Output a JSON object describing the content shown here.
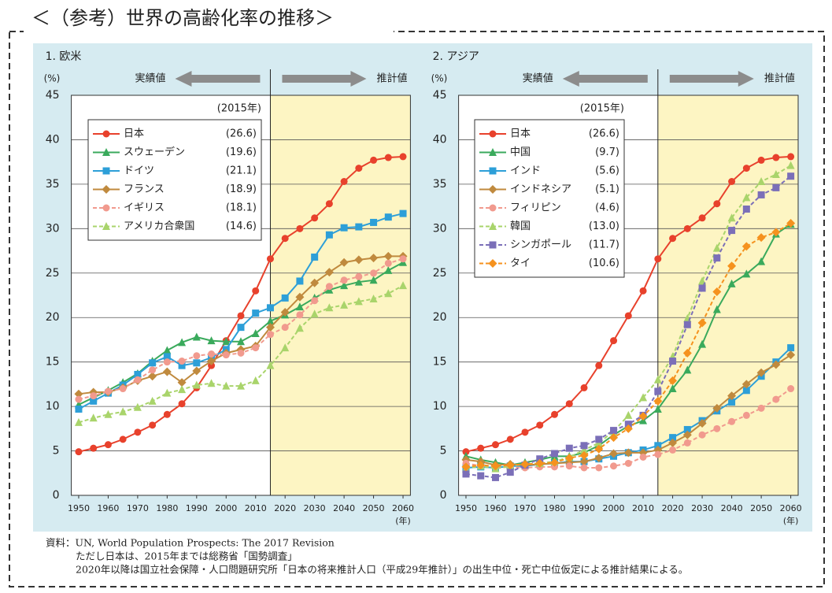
{
  "header": {
    "title": "＜（参考）世界の高齢化率の推移＞"
  },
  "source": [
    "資料：UN, World Population Prospects: The 2017 Revision",
    "ただし日本は、2015年までは総務省「国勢調査」",
    "2020年以降は国立社会保障・人口問題研究所「日本の将来推計人口（平成29年推計）」の出生中位・死亡中位仮定による推計結果による。"
  ],
  "chart_data": [
    {
      "type": "line",
      "title": "1. 欧米",
      "ylabel": "(%)",
      "xlabel": "(年)",
      "actual_label": "実績値",
      "forecast_label": "推計値",
      "forecast_start": 2015,
      "legend_title": "(2015年)",
      "x": [
        1950,
        1955,
        1960,
        1965,
        1970,
        1975,
        1980,
        1985,
        1990,
        1995,
        2000,
        2005,
        2010,
        2015,
        2020,
        2025,
        2030,
        2035,
        2040,
        2045,
        2050,
        2055,
        2060
      ],
      "xlim": [
        1947.5,
        2062.5
      ],
      "xticks": [
        1950,
        1960,
        1970,
        1980,
        1990,
        2000,
        2010,
        2020,
        2030,
        2040,
        2050,
        2060
      ],
      "ylim": [
        0,
        45
      ],
      "yticks": [
        0,
        5,
        10,
        15,
        20,
        25,
        30,
        35,
        40,
        45
      ],
      "grid": true,
      "series": [
        {
          "name": "日本",
          "legend_value": "(26.6)",
          "color": "#e8412c",
          "marker": "circle",
          "dashed": false,
          "values": [
            4.9,
            5.3,
            5.7,
            6.3,
            7.1,
            7.9,
            9.1,
            10.3,
            12.1,
            14.6,
            17.4,
            20.2,
            23.0,
            26.6,
            28.9,
            30.0,
            31.2,
            32.8,
            35.3,
            36.8,
            37.7,
            38.0,
            38.1
          ]
        },
        {
          "name": "スウェーデン",
          "legend_value": "(19.6)",
          "color": "#3aaa5c",
          "marker": "triangle",
          "dashed": false,
          "values": [
            10.2,
            11.0,
            11.8,
            12.7,
            13.7,
            15.1,
            16.3,
            17.2,
            17.8,
            17.4,
            17.3,
            17.3,
            18.2,
            19.6,
            20.3,
            21.2,
            22.2,
            23.1,
            23.6,
            24.0,
            24.2,
            25.3,
            26.2
          ]
        },
        {
          "name": "ドイツ",
          "legend_value": "(21.1)",
          "color": "#2d9fd8",
          "marker": "square",
          "dashed": false,
          "values": [
            9.7,
            10.6,
            11.5,
            12.4,
            13.6,
            14.9,
            15.6,
            14.6,
            14.9,
            15.5,
            16.4,
            18.9,
            20.5,
            21.1,
            22.2,
            24.1,
            26.8,
            29.3,
            30.1,
            30.2,
            30.7,
            31.3,
            31.7
          ]
        },
        {
          "name": "フランス",
          "legend_value": "(18.9)",
          "color": "#c08a3e",
          "marker": "diamond",
          "dashed": false,
          "values": [
            11.4,
            11.6,
            11.6,
            12.1,
            12.9,
            13.4,
            13.9,
            12.7,
            14.0,
            15.1,
            16.0,
            16.4,
            16.8,
            18.9,
            20.6,
            22.3,
            23.9,
            25.1,
            26.2,
            26.5,
            26.7,
            26.9,
            26.9
          ]
        },
        {
          "name": "イギリス",
          "legend_value": "(18.1)",
          "color": "#f19a8e",
          "marker": "circle",
          "dashed": true,
          "values": [
            10.8,
            11.2,
            11.7,
            12.0,
            13.0,
            14.1,
            15.0,
            15.1,
            15.7,
            15.9,
            15.8,
            16.0,
            16.6,
            18.1,
            18.9,
            20.3,
            21.9,
            23.5,
            24.2,
            24.6,
            25.0,
            26.1,
            26.6
          ]
        },
        {
          "name": "アメリカ合衆国",
          "legend_value": "(14.6)",
          "color": "#a9d46b",
          "marker": "triangle",
          "dashed": true,
          "values": [
            8.2,
            8.7,
            9.1,
            9.4,
            9.9,
            10.6,
            11.5,
            11.9,
            12.4,
            12.6,
            12.3,
            12.3,
            12.9,
            14.6,
            16.6,
            18.8,
            20.4,
            21.1,
            21.4,
            21.8,
            22.1,
            22.7,
            23.6
          ]
        }
      ]
    },
    {
      "type": "line",
      "title": "2. アジア",
      "ylabel": "(%)",
      "xlabel": "(年)",
      "actual_label": "実績値",
      "forecast_label": "推計値",
      "forecast_start": 2015,
      "legend_title": "(2015年)",
      "x": [
        1950,
        1955,
        1960,
        1965,
        1970,
        1975,
        1980,
        1985,
        1990,
        1995,
        2000,
        2005,
        2010,
        2015,
        2020,
        2025,
        2030,
        2035,
        2040,
        2045,
        2050,
        2055,
        2060
      ],
      "xlim": [
        1947.5,
        2062.5
      ],
      "xticks": [
        1950,
        1960,
        1970,
        1980,
        1990,
        2000,
        2010,
        2020,
        2030,
        2040,
        2050,
        2060
      ],
      "ylim": [
        0,
        45
      ],
      "yticks": [
        0,
        5,
        10,
        15,
        20,
        25,
        30,
        35,
        40,
        45
      ],
      "grid": true,
      "series": [
        {
          "name": "日本",
          "legend_value": "(26.6)",
          "color": "#e8412c",
          "marker": "circle",
          "dashed": false,
          "values": [
            4.9,
            5.3,
            5.7,
            6.3,
            7.1,
            7.9,
            9.1,
            10.3,
            12.1,
            14.6,
            17.4,
            20.2,
            23.0,
            26.6,
            28.9,
            30.0,
            31.2,
            32.8,
            35.3,
            36.8,
            37.7,
            38.0,
            38.1
          ]
        },
        {
          "name": "中国",
          "legend_value": "(9.7)",
          "color": "#3aaa5c",
          "marker": "triangle",
          "dashed": false,
          "values": [
            4.4,
            4.0,
            3.7,
            3.4,
            3.7,
            4.0,
            4.4,
            4.4,
            4.8,
            5.6,
            6.8,
            7.8,
            8.4,
            9.7,
            12.0,
            14.1,
            17.0,
            20.9,
            23.8,
            24.9,
            26.3,
            29.4,
            30.5
          ]
        },
        {
          "name": "インド",
          "legend_value": "(5.6)",
          "color": "#2d9fd8",
          "marker": "square",
          "dashed": false,
          "values": [
            3.1,
            3.2,
            3.1,
            3.3,
            3.3,
            3.5,
            3.6,
            3.8,
            3.8,
            4.1,
            4.4,
            4.8,
            5.1,
            5.6,
            6.5,
            7.4,
            8.4,
            9.5,
            10.5,
            11.8,
            13.4,
            15.0,
            16.6
          ]
        },
        {
          "name": "インドネシア",
          "legend_value": "(5.1)",
          "color": "#c08a3e",
          "marker": "diamond",
          "dashed": false,
          "values": [
            4.0,
            3.8,
            3.4,
            3.5,
            3.4,
            3.5,
            3.6,
            3.7,
            3.8,
            4.2,
            4.7,
            4.8,
            4.8,
            5.1,
            5.9,
            6.8,
            8.1,
            9.8,
            11.2,
            12.5,
            13.8,
            14.7,
            15.8
          ]
        },
        {
          "name": "フィリピン",
          "legend_value": "(4.6)",
          "color": "#f19a8e",
          "marker": "circle",
          "dashed": true,
          "values": [
            3.6,
            3.3,
            3.1,
            3.2,
            3.1,
            3.2,
            3.2,
            3.3,
            3.1,
            3.1,
            3.3,
            3.6,
            4.3,
            4.6,
            5.1,
            5.9,
            6.8,
            7.5,
            8.3,
            9.0,
            9.8,
            10.8,
            12.0
          ]
        },
        {
          "name": "韓国",
          "legend_value": "(13.0)",
          "color": "#a9d46b",
          "marker": "triangle",
          "dashed": true,
          "values": [
            3.0,
            3.3,
            3.0,
            3.3,
            3.5,
            3.6,
            3.8,
            4.3,
            5.1,
            5.9,
            7.2,
            9.0,
            11.0,
            13.0,
            15.6,
            19.9,
            24.1,
            27.8,
            31.2,
            33.5,
            35.3,
            36.1,
            37.1
          ]
        },
        {
          "name": "シンガポール",
          "legend_value": "(11.7)",
          "color": "#7b6fb8",
          "marker": "square",
          "dashed": true,
          "values": [
            2.4,
            2.2,
            2.0,
            2.6,
            3.4,
            4.1,
            4.7,
            5.3,
            5.6,
            6.3,
            7.3,
            8.0,
            9.0,
            11.7,
            15.1,
            19.2,
            23.3,
            26.7,
            29.8,
            32.2,
            33.8,
            34.6,
            35.9
          ]
        },
        {
          "name": "タイ",
          "legend_value": "(10.6)",
          "color": "#f5921e",
          "marker": "diamond",
          "dashed": true,
          "values": [
            3.2,
            3.4,
            3.3,
            3.4,
            3.5,
            3.6,
            3.7,
            4.2,
            4.5,
            5.2,
            6.5,
            7.5,
            8.9,
            10.6,
            12.9,
            16.0,
            19.4,
            22.9,
            25.8,
            28.0,
            29.0,
            29.6,
            30.6
          ]
        }
      ]
    }
  ]
}
